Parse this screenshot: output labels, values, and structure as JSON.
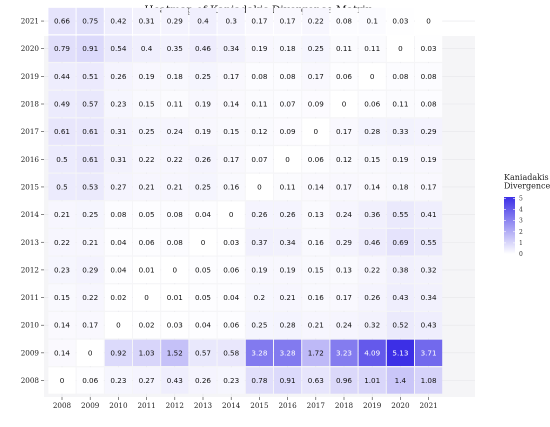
{
  "chart_data": {
    "type": "heatmap",
    "title": "Heatmap of Kaniadakis Divergence Matrix",
    "xlabel": "",
    "ylabel": "",
    "x_categories": [
      "2008",
      "2009",
      "2010",
      "2011",
      "2012",
      "2013",
      "2014",
      "2015",
      "2016",
      "2017",
      "2018",
      "2019",
      "2020",
      "2021"
    ],
    "y_categories": [
      "2008",
      "2009",
      "2010",
      "2011",
      "2012",
      "2013",
      "2014",
      "2015",
      "2016",
      "2017",
      "2018",
      "2019",
      "2020",
      "2021"
    ],
    "values": [
      [
        0,
        0.06,
        0.23,
        0.27,
        0.43,
        0.26,
        0.23,
        0.78,
        0.91,
        0.63,
        0.96,
        1.01,
        1.4,
        1.08
      ],
      [
        0.14,
        0,
        0.92,
        1.03,
        1.52,
        0.57,
        0.58,
        3.28,
        3.28,
        1.72,
        3.23,
        4.09,
        5.13,
        3.71
      ],
      [
        0.14,
        0.17,
        0,
        0.02,
        0.03,
        0.04,
        0.06,
        0.25,
        0.28,
        0.21,
        0.24,
        0.32,
        0.52,
        0.43
      ],
      [
        0.15,
        0.22,
        0.02,
        0,
        0.01,
        0.05,
        0.04,
        0.2,
        0.21,
        0.16,
        0.17,
        0.26,
        0.43,
        0.34
      ],
      [
        0.23,
        0.29,
        0.04,
        0.01,
        0,
        0.05,
        0.06,
        0.19,
        0.19,
        0.15,
        0.13,
        0.22,
        0.38,
        0.32
      ],
      [
        0.22,
        0.21,
        0.04,
        0.06,
        0.08,
        0,
        0.03,
        0.37,
        0.34,
        0.16,
        0.29,
        0.46,
        0.69,
        0.55
      ],
      [
        0.21,
        0.25,
        0.08,
        0.05,
        0.08,
        0.04,
        0,
        0.26,
        0.26,
        0.13,
        0.24,
        0.36,
        0.55,
        0.41
      ],
      [
        0.5,
        0.53,
        0.27,
        0.21,
        0.21,
        0.25,
        0.16,
        0,
        0.11,
        0.14,
        0.17,
        0.14,
        0.18,
        0.17
      ],
      [
        0.5,
        0.61,
        0.31,
        0.22,
        0.22,
        0.26,
        0.17,
        0.07,
        0,
        0.06,
        0.12,
        0.15,
        0.19,
        0.19
      ],
      [
        0.61,
        0.61,
        0.31,
        0.25,
        0.24,
        0.19,
        0.15,
        0.12,
        0.09,
        0,
        0.17,
        0.28,
        0.33,
        0.29
      ],
      [
        0.49,
        0.57,
        0.23,
        0.15,
        0.11,
        0.19,
        0.14,
        0.11,
        0.07,
        0.09,
        0,
        0.06,
        0.11,
        0.08
      ],
      [
        0.44,
        0.51,
        0.26,
        0.19,
        0.18,
        0.25,
        0.17,
        0.08,
        0.08,
        0.17,
        0.06,
        0,
        0.08,
        0.08
      ],
      [
        0.79,
        0.91,
        0.54,
        0.4,
        0.35,
        0.46,
        0.34,
        0.19,
        0.18,
        0.25,
        0.11,
        0.11,
        0,
        0.03
      ],
      [
        0.66,
        0.75,
        0.42,
        0.31,
        0.29,
        0.4,
        0.3,
        0.17,
        0.17,
        0.22,
        0.08,
        0.1,
        0.03,
        0
      ]
    ],
    "legend": {
      "title_lines": [
        "Kaniadakis",
        "Divergence"
      ],
      "ticks": [
        0,
        1,
        2,
        3,
        4,
        5
      ],
      "range": [
        0,
        5.13
      ],
      "placement": "right"
    },
    "colors": {
      "low": "#ffffff",
      "high": "#3c2fe6",
      "panel_background": "#f5f5f7",
      "grid": "#e6e6ea"
    },
    "grid": true
  }
}
